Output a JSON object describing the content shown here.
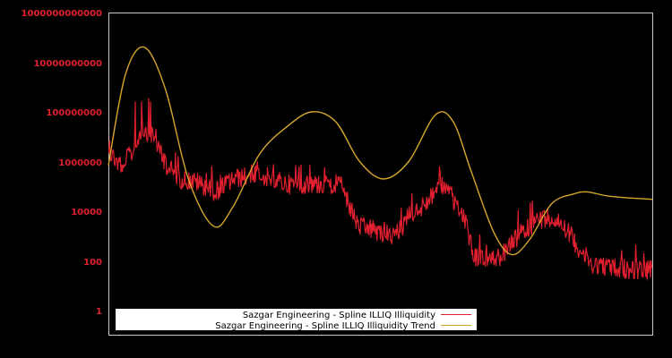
{
  "chart_data": {
    "type": "line",
    "title": "",
    "xlabel": "",
    "ylabel": "",
    "yscale": "log",
    "ylim": [
      0.3,
      1000000000000
    ],
    "y_ticks": [
      "1",
      "100",
      "10000",
      "1000000",
      "100000000",
      "10000000000",
      "1000000000000"
    ],
    "grid": false,
    "legend_position": "bottom-left inside plot",
    "x_tick_labels": [],
    "series": [
      {
        "name": "Sazgar Engineering - Spline ILLIQ Illiquidity",
        "color": "#e0202e",
        "style": "noisy line",
        "approx_points_x_fraction": [
          0.0,
          0.023,
          0.048,
          0.064,
          0.081,
          0.105,
          0.13,
          0.163,
          0.196,
          0.229,
          0.278,
          0.328,
          0.377,
          0.427,
          0.459,
          0.492,
          0.524,
          0.557,
          0.59,
          0.61,
          0.631,
          0.656,
          0.673,
          0.697,
          0.722,
          0.754,
          0.787,
          0.812,
          0.837,
          0.862,
          0.886,
          0.936,
          1.0
        ],
        "approx_values": [
          3000000,
          600000,
          3000000,
          20000000,
          12000000,
          800000,
          200000,
          150000,
          60000,
          200000,
          300000,
          120000,
          120000,
          120000,
          2500,
          1600,
          1000,
          5000,
          30000,
          150000,
          30000,
          4000,
          150,
          100,
          150,
          1000,
          4000,
          6000,
          3000,
          400,
          80,
          50,
          40
        ]
      },
      {
        "name": "Sazgar Engineering - Spline ILLIQ Illiquidity Trend",
        "color": "#d4a72c",
        "style": "smooth line",
        "approx_points_x_fraction": [
          0.0,
          0.031,
          0.066,
          0.105,
          0.147,
          0.193,
          0.229,
          0.278,
          0.328,
          0.374,
          0.418,
          0.462,
          0.506,
          0.552,
          0.601,
          0.634,
          0.667,
          0.708,
          0.741,
          0.774,
          0.815,
          0.856,
          0.881,
          0.922,
          1.0
        ],
        "approx_values": [
          700000,
          3000000000,
          40000000000.0,
          800000000,
          200000,
          2500,
          15000,
          2000000,
          25000000,
          100000000,
          40000000,
          1000000,
          200000,
          1000000,
          75000000,
          40000000,
          400000,
          1500,
          180,
          700,
          20000,
          50000,
          60000,
          40000,
          30000
        ]
      }
    ]
  },
  "legend": {
    "items": [
      {
        "label": "Sazgar Engineering - Spline ILLIQ Illiquidity",
        "color": "#e0202e"
      },
      {
        "label": "Sazgar Engineering - Spline ILLIQ Illiquidity Trend",
        "color": "#d4a72c"
      }
    ]
  },
  "axes": {
    "y_labels": [
      "1000000000000",
      "10000000000",
      "100000000",
      "1000000",
      "10000",
      "100",
      "1"
    ]
  },
  "colors": {
    "background": "#000000",
    "frame": "#c8c8c8",
    "tick_label": "#e0202e",
    "series": "#e0202e",
    "trend": "#d4a72c",
    "legend_bg": "#ffffff"
  }
}
